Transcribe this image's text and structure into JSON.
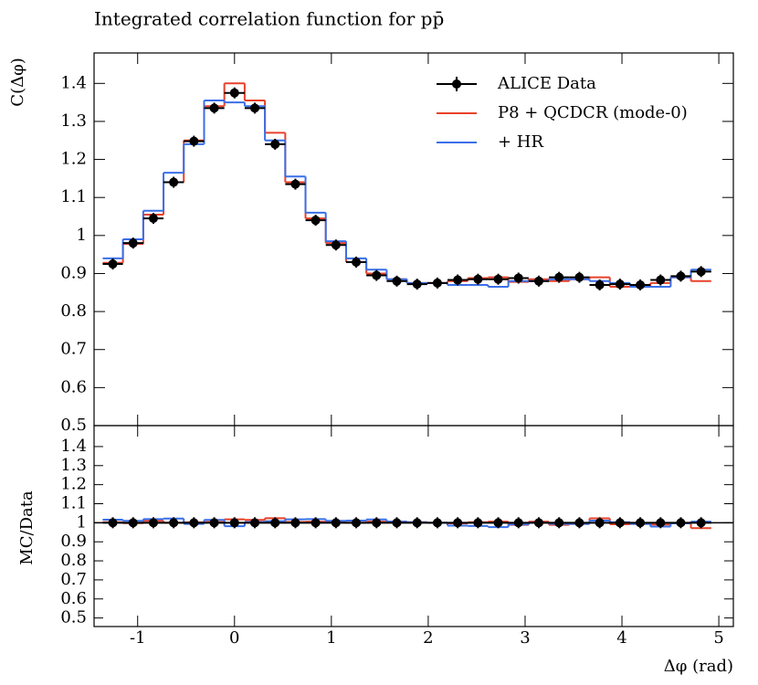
{
  "chart_data": {
    "type": "histogram",
    "title": "Integrated correlation function for pp̄",
    "y_label": "C(Δφ)",
    "ratio_y_label": "MC/Data",
    "x_label": "Δφ (rad)",
    "xlim": [
      -1.45,
      5.15
    ],
    "xticks": [
      -1,
      0,
      1,
      2,
      3,
      4,
      5
    ],
    "ylim": [
      0.5,
      1.48
    ],
    "yticks": [
      0.5,
      0.6,
      0.7,
      0.8,
      0.9,
      1,
      1.1,
      1.2,
      1.3,
      1.4
    ],
    "ratio_ylim": [
      0.455,
      1.51
    ],
    "ratio_yticks": [
      0.5,
      0.6,
      0.7,
      0.8,
      0.9,
      1,
      1.1,
      1.2,
      1.3,
      1.4
    ],
    "bins": [
      -1.361,
      -1.152,
      -0.942,
      -0.733,
      -0.524,
      -0.314,
      -0.105,
      0.105,
      0.314,
      0.524,
      0.733,
      0.942,
      1.152,
      1.361,
      1.571,
      1.78,
      1.99,
      2.199,
      2.409,
      2.618,
      2.827,
      3.037,
      3.246,
      3.456,
      3.665,
      3.875,
      4.084,
      4.294,
      4.503,
      4.712,
      4.922
    ],
    "data": {
      "name": "ALICE Data",
      "color": "#000000",
      "values": [
        0.925,
        0.98,
        1.045,
        1.14,
        1.248,
        1.335,
        1.375,
        1.335,
        1.24,
        1.135,
        1.04,
        0.975,
        0.93,
        0.895,
        0.88,
        0.872,
        0.875,
        0.883,
        0.885,
        0.885,
        0.888,
        0.88,
        0.89,
        0.89,
        0.87,
        0.872,
        0.87,
        0.883,
        0.893,
        0.905
      ],
      "ratio": [
        1,
        1,
        1,
        1,
        1,
        1,
        1,
        1,
        1,
        1,
        1,
        1,
        1,
        1,
        1,
        1,
        1,
        1,
        1,
        1,
        1,
        1,
        1,
        1,
        1,
        1,
        1,
        1,
        1,
        1
      ]
    },
    "series": [
      {
        "name": "P8 + QCDCR (mode-0)",
        "color": "#e8412a",
        "values": [
          0.928,
          0.978,
          1.055,
          1.14,
          1.25,
          1.34,
          1.4,
          1.355,
          1.27,
          1.14,
          1.045,
          0.98,
          0.93,
          0.9,
          0.885,
          0.875,
          0.875,
          0.88,
          0.888,
          0.89,
          0.878,
          0.885,
          0.88,
          0.885,
          0.89,
          0.865,
          0.865,
          0.875,
          0.89,
          0.88
        ],
        "ratio": [
          1.003,
          0.998,
          1.01,
          1.0,
          1.002,
          1.004,
          1.018,
          1.015,
          1.024,
          1.004,
          1.005,
          1.005,
          1.0,
          1.006,
          1.006,
          1.003,
          1.0,
          0.997,
          1.003,
          1.006,
          0.989,
          1.006,
          0.989,
          0.994,
          1.023,
          0.992,
          0.994,
          0.991,
          0.997,
          0.972
        ]
      },
      {
        "name": "+ HR",
        "color": "#3a6fe8",
        "values": [
          0.94,
          0.99,
          1.065,
          1.165,
          1.24,
          1.355,
          1.35,
          1.34,
          1.25,
          1.155,
          1.06,
          0.985,
          0.94,
          0.91,
          0.885,
          0.875,
          0.875,
          0.87,
          0.87,
          0.865,
          0.88,
          0.88,
          0.885,
          0.885,
          0.88,
          0.875,
          0.865,
          0.865,
          0.89,
          0.91
        ],
        "ratio": [
          1.016,
          1.01,
          1.019,
          1.022,
          0.994,
          1.015,
          0.982,
          1.004,
          1.008,
          1.018,
          1.019,
          1.01,
          1.011,
          1.017,
          1.006,
          1.003,
          1.0,
          0.985,
          0.983,
          0.977,
          0.991,
          1.0,
          0.994,
          0.994,
          1.011,
          1.003,
          0.994,
          0.98,
          0.997,
          1.006
        ]
      }
    ]
  }
}
